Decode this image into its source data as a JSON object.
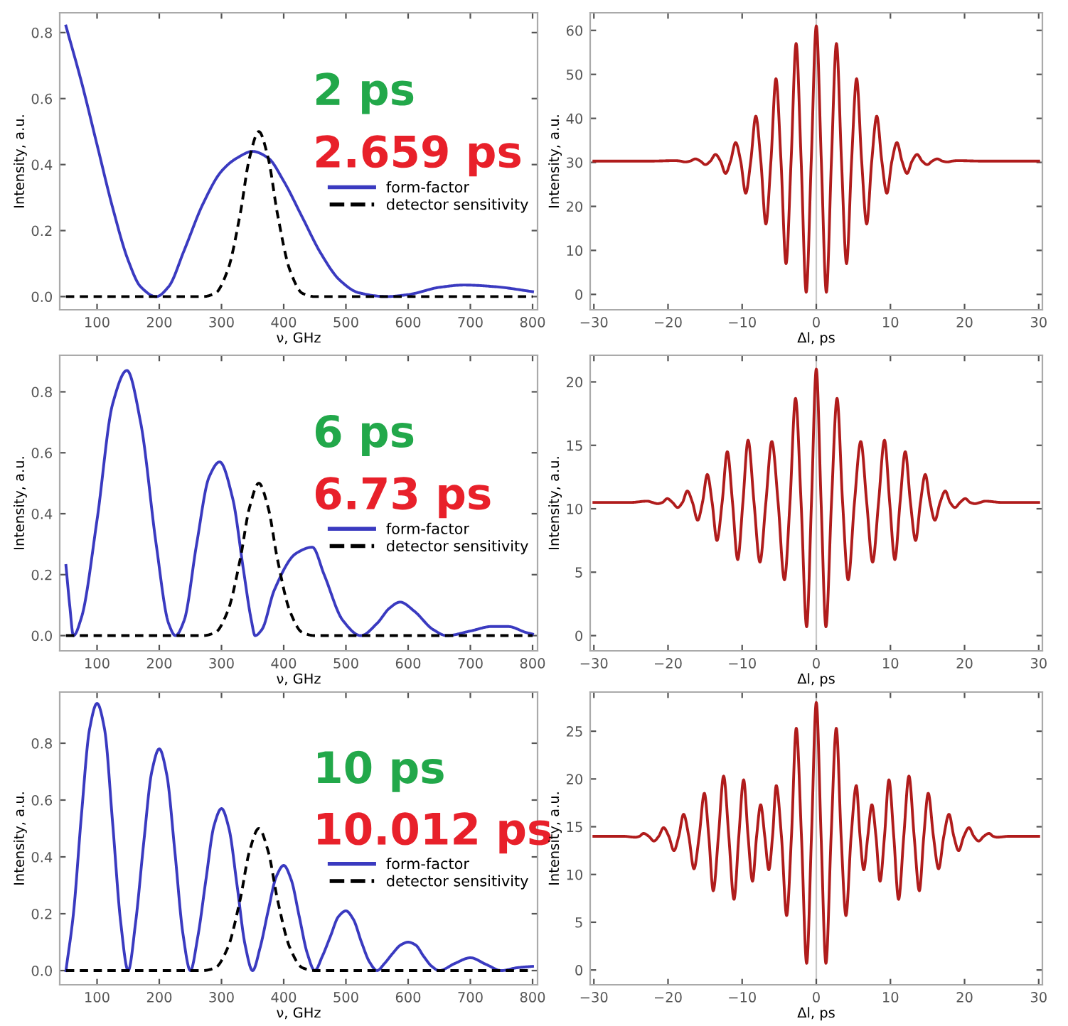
{
  "chart_data": [
    {
      "type": "line",
      "xlabel": "ν, GHz",
      "ylabel": "Intensity, a.u.",
      "xlim": [
        40,
        808
      ],
      "ylim": [
        -0.04,
        0.86
      ],
      "xticks": [
        100,
        200,
        300,
        400,
        500,
        600,
        700,
        800
      ],
      "yticks": [
        {
          "value": 0,
          "label": "0.0"
        },
        {
          "value": 0.2,
          "label": "0.2"
        },
        {
          "value": 0.4,
          "label": "0.4"
        },
        {
          "value": 0.6,
          "label": "0.6"
        },
        {
          "value": 0.8,
          "label": "0.8"
        }
      ],
      "legend": "right",
      "annotations": [
        "2 ps",
        "2.659 ps"
      ],
      "series": [
        {
          "name": "form-factor",
          "color": "#3a3ac0",
          "line_style": "solid",
          "x": [
            50,
            75,
            100,
            125,
            150,
            170,
            195,
            215,
            240,
            270,
            300,
            325,
            350,
            375,
            400,
            430,
            460,
            490,
            520,
            565,
            600,
            650,
            690,
            740,
            800
          ],
          "values": [
            0.82,
            0.65,
            0.46,
            0.27,
            0.11,
            0.03,
            0.0,
            0.03,
            0.14,
            0.28,
            0.38,
            0.42,
            0.44,
            0.42,
            0.35,
            0.24,
            0.13,
            0.05,
            0.012,
            0.0,
            0.006,
            0.028,
            0.035,
            0.03,
            0.015
          ]
        },
        {
          "name": "detector sensitivity",
          "color": "#000000",
          "line_style": "dashed",
          "x": [
            50,
            270,
            290,
            310,
            330,
            345,
            360,
            375,
            390,
            410,
            430,
            450,
            800
          ],
          "values": [
            0,
            0,
            0.01,
            0.08,
            0.25,
            0.42,
            0.5,
            0.42,
            0.25,
            0.08,
            0.01,
            0,
            0
          ]
        }
      ]
    },
    {
      "type": "line",
      "xlabel": "Δl, ps",
      "ylabel": "Intensity, a.u.",
      "xlim": [
        -30.5,
        30.5
      ],
      "ylim": [
        -3.5,
        64
      ],
      "xticks": [
        {
          "value": -30,
          "label": "−30"
        },
        {
          "value": -20,
          "label": "−20"
        },
        {
          "value": -10,
          "label": "−10"
        },
        0,
        10,
        20,
        30
      ],
      "yticks": [
        0,
        10,
        20,
        30,
        40,
        50,
        60
      ],
      "ref_lines": [
        {
          "axis": "x",
          "value": 0,
          "color": "#c8c8c8"
        }
      ],
      "series": [
        {
          "color": "#b01c1c",
          "x": [
            -30,
            -22,
            -19.04,
            -18.36,
            -17.68,
            -17.0,
            -16.32,
            -15.64,
            -14.96,
            -14.28,
            -13.6,
            -12.92,
            -12.24,
            -11.56,
            -10.88,
            -10.2,
            -9.52,
            -8.84,
            -8.16,
            -7.48,
            -6.8,
            -6.12,
            -5.44,
            -4.76,
            -4.08,
            -3.4,
            -2.72,
            -2.04,
            -1.36,
            -0.68,
            0,
            0.68,
            1.36,
            2.04,
            2.72,
            3.4,
            4.08,
            4.76,
            5.44,
            6.12,
            6.8,
            7.48,
            8.16,
            8.84,
            9.52,
            10.2,
            10.88,
            11.56,
            12.24,
            12.92,
            13.6,
            14.28,
            14.96,
            15.64,
            16.32,
            17.0,
            17.68,
            18.36,
            19.04,
            22,
            30
          ],
          "values": [
            30.3,
            30.3,
            30.4,
            30.3,
            30.1,
            30.3,
            30.8,
            30.3,
            29.5,
            30.3,
            31.8,
            30.3,
            27.5,
            30.3,
            34.5,
            30.3,
            23,
            30.3,
            40.5,
            30.3,
            16,
            30.3,
            49,
            30.3,
            7,
            30.3,
            57,
            30.3,
            0.5,
            30.3,
            61,
            30.3,
            0.5,
            30.3,
            57,
            30.3,
            7,
            30.3,
            49,
            30.3,
            16,
            30.3,
            40.5,
            30.3,
            23,
            30.3,
            34.5,
            30.3,
            27.5,
            30.3,
            31.8,
            30.3,
            29.5,
            30.3,
            30.8,
            30.3,
            30.1,
            30.3,
            30.4,
            30.3,
            30.3
          ]
        }
      ]
    },
    {
      "type": "line",
      "xlabel": "ν, GHz",
      "ylabel": "Intensity, a.u.",
      "xlim": [
        40,
        808
      ],
      "ylim": [
        -0.05,
        0.92
      ],
      "xticks": [
        100,
        200,
        300,
        400,
        500,
        600,
        700,
        800
      ],
      "yticks": [
        {
          "value": 0,
          "label": "0.0"
        },
        {
          "value": 0.2,
          "label": "0.2"
        },
        {
          "value": 0.4,
          "label": "0.4"
        },
        {
          "value": 0.6,
          "label": "0.6"
        },
        {
          "value": 0.8,
          "label": "0.8"
        }
      ],
      "legend": "right",
      "annotations": [
        "6 ps",
        "6.73 ps"
      ],
      "series": [
        {
          "name": "form-factor",
          "color": "#3a3ac0",
          "line_style": "solid",
          "x": [
            50,
            56,
            62,
            75,
            100,
            125,
            148,
            170,
            195,
            215,
            226,
            240,
            260,
            280,
            297,
            318,
            335,
            348,
            354,
            365,
            385,
            420,
            446,
            465,
            495,
            524,
            550,
            570,
            587,
            610,
            640,
            662,
            700,
            735,
            760,
            790,
            800
          ],
          "values": [
            0.23,
            0.1,
            0.0,
            0.06,
            0.38,
            0.76,
            0.87,
            0.7,
            0.3,
            0.04,
            0.0,
            0.05,
            0.3,
            0.52,
            0.57,
            0.45,
            0.22,
            0.05,
            0.0,
            0.02,
            0.15,
            0.27,
            0.29,
            0.2,
            0.05,
            0.0,
            0.04,
            0.09,
            0.11,
            0.08,
            0.02,
            0.0,
            0.015,
            0.03,
            0.03,
            0.01,
            0.005
          ]
        },
        {
          "name": "detector sensitivity",
          "color": "#000000",
          "line_style": "dashed",
          "x": [
            50,
            270,
            290,
            310,
            330,
            345,
            360,
            375,
            390,
            410,
            430,
            450,
            800
          ],
          "values": [
            0,
            0,
            0.01,
            0.08,
            0.25,
            0.42,
            0.5,
            0.42,
            0.25,
            0.08,
            0.01,
            0,
            0
          ]
        }
      ]
    },
    {
      "type": "line",
      "xlabel": "Δl, ps",
      "ylabel": "Intensity, a.u.",
      "xlim": [
        -30.5,
        30.5
      ],
      "ylim": [
        -1.2,
        22.1
      ],
      "xticks": [
        {
          "value": -30,
          "label": "−30"
        },
        {
          "value": -20,
          "label": "−20"
        },
        {
          "value": -10,
          "label": "−10"
        },
        0,
        10,
        20,
        30
      ],
      "yticks": [
        0,
        5,
        10,
        15,
        20
      ],
      "ref_lines": [
        {
          "axis": "x",
          "value": 0,
          "color": "#c8c8c8"
        }
      ],
      "series": [
        {
          "color": "#b01c1c",
          "x": [
            -30,
            -25,
            -22.8,
            -22.1,
            -21.4,
            -20.75,
            -20.1,
            -19.4,
            -18.7,
            -18.05,
            -17.4,
            -16.7,
            -16.0,
            -15.35,
            -14.7,
            -14.05,
            -13.4,
            -12.7,
            -12.0,
            -11.3,
            -10.6,
            -9.9,
            -9.2,
            -8.4,
            -7.6,
            -6.8,
            -6.0,
            -5.15,
            -4.3,
            -3.55,
            -2.8,
            -2.05,
            -1.3,
            -0.65,
            0,
            0.65,
            1.3,
            2.05,
            2.8,
            3.55,
            4.3,
            5.15,
            6.0,
            6.8,
            7.6,
            8.4,
            9.2,
            9.9,
            10.6,
            11.3,
            12.0,
            12.7,
            13.4,
            14.05,
            14.7,
            15.35,
            16.0,
            16.7,
            17.4,
            18.05,
            18.7,
            19.4,
            20.1,
            20.75,
            21.4,
            22.1,
            22.8,
            25,
            30
          ],
          "values": [
            10.5,
            10.5,
            10.6,
            10.5,
            10.4,
            10.5,
            10.8,
            10.5,
            10.1,
            10.5,
            11.4,
            10.5,
            9.1,
            10.5,
            12.7,
            10.5,
            7.5,
            10.5,
            14.5,
            10.5,
            6.0,
            10.5,
            15.4,
            10.5,
            5.8,
            10.5,
            15.3,
            10.5,
            4.4,
            10.5,
            18.7,
            10.5,
            0.7,
            10.5,
            21,
            10.5,
            0.7,
            10.5,
            18.7,
            10.5,
            4.4,
            10.5,
            15.3,
            10.5,
            5.8,
            10.5,
            15.4,
            10.5,
            6.0,
            10.5,
            14.5,
            10.5,
            7.5,
            10.5,
            12.7,
            10.5,
            9.1,
            10.5,
            11.4,
            10.5,
            10.1,
            10.5,
            10.8,
            10.5,
            10.4,
            10.5,
            10.6,
            10.5,
            10.5
          ]
        }
      ]
    },
    {
      "type": "line",
      "xlabel": "ν, GHz",
      "ylabel": "Intensity, a.u.",
      "xlim": [
        40,
        808
      ],
      "ylim": [
        -0.05,
        0.98
      ],
      "xticks": [
        100,
        200,
        300,
        400,
        500,
        600,
        700,
        800
      ],
      "yticks": [
        {
          "value": 0,
          "label": "0.0"
        },
        {
          "value": 0.2,
          "label": "0.2"
        },
        {
          "value": 0.4,
          "label": "0.4"
        },
        {
          "value": 0.6,
          "label": "0.6"
        },
        {
          "value": 0.8,
          "label": "0.8"
        }
      ],
      "legend": "right",
      "annotations": [
        "10 ps",
        "10.012 ps"
      ],
      "series": [
        {
          "name": "form-factor",
          "color": "#3a3ac0",
          "line_style": "solid",
          "x": [
            50,
            62,
            75,
            88,
            100,
            112,
            125,
            138,
            150,
            162,
            175,
            188,
            200,
            212,
            225,
            238,
            250,
            262,
            275,
            288,
            300,
            312,
            325,
            338,
            350,
            362,
            375,
            388,
            400,
            412,
            425,
            438,
            450,
            462,
            475,
            488,
            500,
            512,
            525,
            538,
            550,
            562,
            575,
            588,
            600,
            612,
            625,
            638,
            650,
            675,
            700,
            725,
            750,
            775,
            800
          ],
          "values": [
            0,
            0.2,
            0.55,
            0.85,
            0.94,
            0.85,
            0.52,
            0.17,
            0,
            0.17,
            0.45,
            0.7,
            0.78,
            0.69,
            0.42,
            0.13,
            0,
            0.12,
            0.32,
            0.51,
            0.57,
            0.5,
            0.3,
            0.09,
            0,
            0.08,
            0.21,
            0.33,
            0.37,
            0.32,
            0.19,
            0.06,
            0,
            0.05,
            0.12,
            0.19,
            0.21,
            0.18,
            0.1,
            0.03,
            0,
            0.025,
            0.06,
            0.09,
            0.1,
            0.09,
            0.05,
            0.015,
            0,
            0.025,
            0.045,
            0.022,
            0,
            0.01,
            0.015
          ]
        },
        {
          "name": "detector sensitivity",
          "color": "#000000",
          "line_style": "dashed",
          "x": [
            50,
            270,
            290,
            310,
            330,
            345,
            360,
            375,
            390,
            410,
            430,
            450,
            800
          ],
          "values": [
            0,
            0,
            0.01,
            0.08,
            0.25,
            0.42,
            0.5,
            0.42,
            0.25,
            0.08,
            0.01,
            0,
            0
          ]
        }
      ]
    },
    {
      "type": "line",
      "xlabel": "Δl, ps",
      "ylabel": "Intensity, a.u.",
      "xlim": [
        -30.5,
        30.5
      ],
      "ylim": [
        -1.55,
        29.1
      ],
      "xticks": [
        {
          "value": -30,
          "label": "−30"
        },
        {
          "value": -20,
          "label": "−20"
        },
        {
          "value": -10,
          "label": "−10"
        },
        0,
        10,
        20,
        30
      ],
      "yticks": [
        0,
        5,
        10,
        15,
        20,
        25
      ],
      "ref_lines": [
        {
          "axis": "x",
          "value": 0,
          "color": "#c8c8c8"
        }
      ],
      "series": [
        {
          "color": "#b01c1c",
          "x": [
            -30,
            -26,
            -24.4,
            -23.85,
            -23.3,
            -22.6,
            -21.9,
            -21.25,
            -20.6,
            -19.9,
            -19.2,
            -18.55,
            -17.9,
            -17.2,
            -16.5,
            -15.8,
            -15.1,
            -14.5,
            -13.9,
            -13.2,
            -12.5,
            -11.8,
            -11.1,
            -10.45,
            -9.8,
            -9.2,
            -8.6,
            -8.05,
            -7.5,
            -6.95,
            -6.4,
            -5.9,
            -5.4,
            -4.7,
            -4.0,
            -3.35,
            -2.7,
            -2.0,
            -1.3,
            -0.65,
            0,
            0.65,
            1.3,
            2.0,
            2.7,
            3.35,
            4.0,
            4.7,
            5.4,
            5.9,
            6.4,
            6.95,
            7.5,
            8.05,
            8.6,
            9.2,
            9.8,
            10.45,
            11.1,
            11.8,
            12.5,
            13.2,
            13.9,
            14.5,
            15.1,
            15.8,
            16.5,
            17.2,
            17.9,
            18.55,
            19.2,
            19.9,
            20.6,
            21.25,
            21.9,
            22.6,
            23.3,
            23.85,
            24.4,
            26,
            30
          ],
          "values": [
            14,
            14,
            13.9,
            14,
            14.3,
            14,
            13.5,
            14,
            14.9,
            14,
            12.5,
            14,
            16.3,
            14,
            10.6,
            14,
            18.5,
            14,
            8.3,
            14,
            20.3,
            14,
            7.4,
            14,
            19.9,
            14,
            9.3,
            14,
            17.3,
            14,
            10.5,
            14,
            19.3,
            14,
            5.7,
            14,
            25.3,
            14,
            0.7,
            14,
            28,
            14,
            0.7,
            14,
            25.3,
            14,
            5.7,
            14,
            19.3,
            14,
            10.5,
            14,
            17.3,
            14,
            9.3,
            14,
            19.9,
            14,
            7.4,
            14,
            20.3,
            14,
            8.3,
            14,
            18.5,
            14,
            10.6,
            14,
            16.3,
            14,
            12.5,
            14,
            14.9,
            14,
            13.5,
            14,
            14.3,
            14,
            13.9,
            14,
            14
          ]
        }
      ]
    }
  ]
}
